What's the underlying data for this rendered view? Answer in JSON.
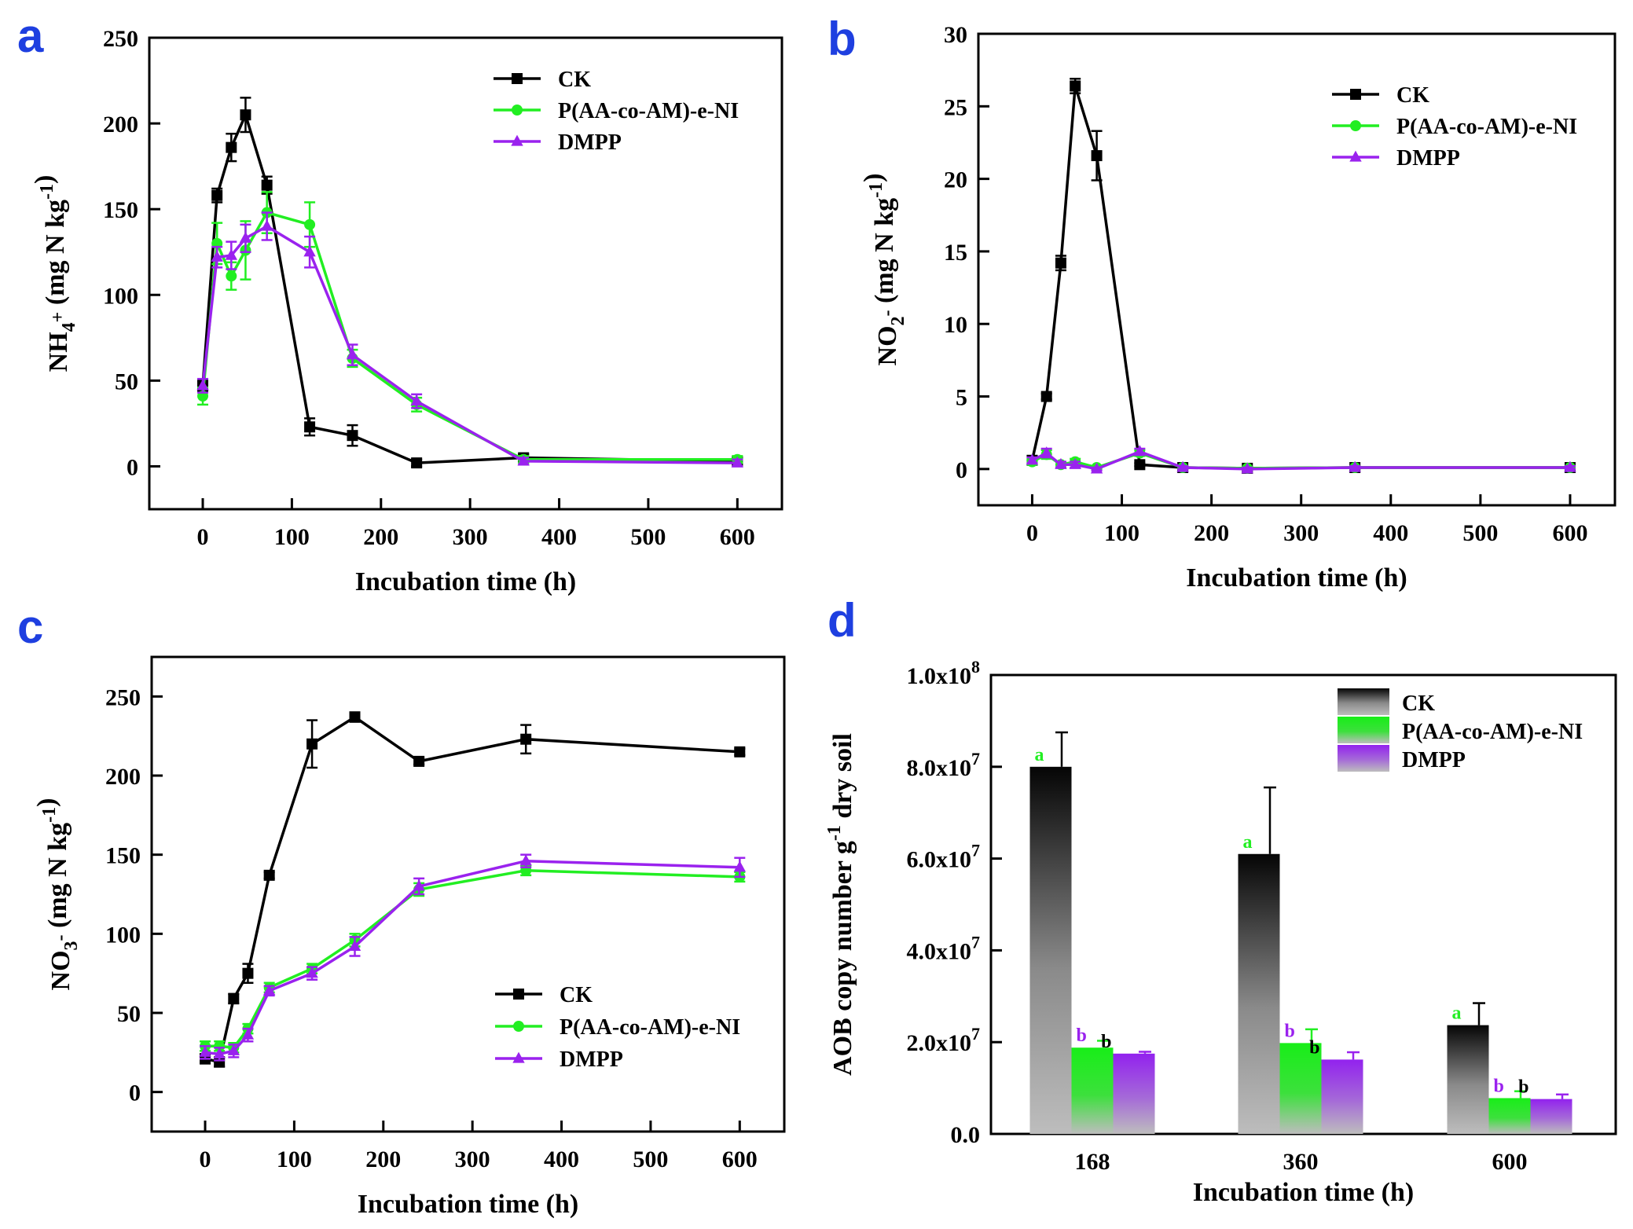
{
  "figure": {
    "panel_letters": [
      "a",
      "b",
      "c",
      "d"
    ],
    "colors": {
      "ck": "#000000",
      "ni": "#22ee22",
      "dmpp": "#9a22ee",
      "panel_letter": "#1e3fe0"
    }
  },
  "chart_data": [
    {
      "panel": "a",
      "type": "line",
      "title": "",
      "xlabel": "Incubation time (h)",
      "ylabel": "NH4+ (mg N kg-1)",
      "ylabel_parts": {
        "main": "NH",
        "sub": "4",
        "sup": "+",
        "rest": " (mg N kg",
        "sup2": "-1",
        "end": ")"
      },
      "xlim": [
        -60,
        650
      ],
      "ylim": [
        -25,
        250
      ],
      "xticks": [
        0,
        100,
        200,
        300,
        400,
        500,
        600
      ],
      "yticks": [
        0,
        50,
        100,
        150,
        200,
        250
      ],
      "legend_position": "top-right",
      "series": [
        {
          "name": "CK",
          "color": "#000000",
          "marker": "square",
          "x": [
            0,
            16,
            32,
            48,
            72,
            120,
            168,
            240,
            360,
            600
          ],
          "y": [
            47,
            158,
            186,
            205,
            164,
            23,
            18,
            2,
            5,
            3
          ],
          "err": [
            3,
            4,
            8,
            10,
            5,
            5,
            6,
            2,
            2,
            2
          ]
        },
        {
          "name": "P(AA-co-AM)-e-NI",
          "color": "#22ee22",
          "marker": "circle",
          "x": [
            0,
            16,
            32,
            48,
            72,
            120,
            168,
            240,
            360,
            600
          ],
          "y": [
            41,
            130,
            111,
            126,
            148,
            141,
            63,
            36,
            4,
            4
          ],
          "err": [
            5,
            12,
            8,
            17,
            12,
            13,
            5,
            4,
            2,
            2
          ]
        },
        {
          "name": "DMPP",
          "color": "#9a22ee",
          "marker": "triangle",
          "x": [
            0,
            16,
            32,
            48,
            72,
            120,
            168,
            240,
            360,
            600
          ],
          "y": [
            47,
            122,
            123,
            133,
            140,
            125,
            65,
            38,
            3,
            2
          ],
          "err": [
            4,
            6,
            8,
            8,
            8,
            9,
            6,
            4,
            2,
            2
          ]
        }
      ]
    },
    {
      "panel": "b",
      "type": "line",
      "title": "",
      "xlabel": "Incubation time (h)",
      "ylabel": "NO2- (mg N kg-1)",
      "ylabel_parts": {
        "main": "NO",
        "sub": "2",
        "sup": "-",
        "rest": " (mg N kg",
        "sup2": "-1",
        "end": ")"
      },
      "xlim": [
        -60,
        650
      ],
      "ylim": [
        -2.5,
        30
      ],
      "xticks": [
        0,
        100,
        200,
        300,
        400,
        500,
        600
      ],
      "yticks": [
        0,
        5,
        10,
        15,
        20,
        25,
        30
      ],
      "legend_position": "top-right",
      "series": [
        {
          "name": "CK",
          "color": "#000000",
          "marker": "square",
          "x": [
            0,
            16,
            32,
            48,
            72,
            120,
            168,
            240,
            360,
            600
          ],
          "y": [
            0.6,
            5.0,
            14.2,
            26.4,
            21.6,
            0.3,
            0.1,
            0.05,
            0.1,
            0.1
          ],
          "err": [
            0.3,
            0.2,
            0.5,
            0.5,
            1.7,
            0.1,
            0.1,
            0.1,
            0.1,
            0.1
          ]
        },
        {
          "name": "P(AA-co-AM)-e-NI",
          "color": "#22ee22",
          "marker": "circle",
          "x": [
            0,
            16,
            32,
            48,
            72,
            120,
            168,
            240,
            360,
            600
          ],
          "y": [
            0.5,
            1.0,
            0.3,
            0.5,
            0.1,
            1.1,
            0.1,
            0.05,
            0.1,
            0.1
          ],
          "err": [
            0.2,
            0.3,
            0.2,
            0.2,
            0.1,
            0.2,
            0.1,
            0.1,
            0.1,
            0.1
          ]
        },
        {
          "name": "DMPP",
          "color": "#9a22ee",
          "marker": "triangle",
          "x": [
            0,
            16,
            32,
            48,
            72,
            120,
            168,
            240,
            360,
            600
          ],
          "y": [
            0.6,
            1.1,
            0.3,
            0.3,
            0.0,
            1.2,
            0.1,
            0.0,
            0.1,
            0.1
          ],
          "err": [
            0.2,
            0.3,
            0.2,
            0.2,
            0.1,
            0.2,
            0.1,
            0.1,
            0.1,
            0.1
          ]
        }
      ]
    },
    {
      "panel": "c",
      "type": "line",
      "title": "",
      "xlabel": "Incubation time (h)",
      "ylabel": "NO3- (mg N kg-1)",
      "ylabel_parts": {
        "main": "NO",
        "sub": "3",
        "sup": "-",
        "rest": " (mg N kg",
        "sup2": "-1",
        "end": ")"
      },
      "xlim": [
        -60,
        650
      ],
      "ylim": [
        -25,
        275
      ],
      "xticks": [
        0,
        100,
        200,
        300,
        400,
        500,
        600
      ],
      "yticks": [
        0,
        50,
        100,
        150,
        200,
        250
      ],
      "legend_position": "bottom-right",
      "series": [
        {
          "name": "CK",
          "color": "#000000",
          "marker": "square",
          "x": [
            0,
            16,
            32,
            48,
            72,
            120,
            168,
            240,
            360,
            600
          ],
          "y": [
            21,
            19,
            59,
            75,
            137,
            220,
            237,
            209,
            223,
            215
          ],
          "err": [
            3,
            3,
            3,
            6,
            2,
            15,
            3,
            2,
            9,
            2
          ]
        },
        {
          "name": "P(AA-co-AM)-e-NI",
          "color": "#22ee22",
          "marker": "circle",
          "x": [
            0,
            16,
            32,
            48,
            72,
            120,
            168,
            240,
            360,
            600
          ],
          "y": [
            29,
            29,
            28,
            40,
            66,
            78,
            96,
            128,
            140,
            136
          ],
          "err": [
            3,
            3,
            3,
            3,
            3,
            3,
            4,
            4,
            3,
            3
          ]
        },
        {
          "name": "DMPP",
          "color": "#9a22ee",
          "marker": "triangle",
          "x": [
            0,
            16,
            32,
            48,
            72,
            120,
            168,
            240,
            360,
            600
          ],
          "y": [
            25,
            24,
            26,
            36,
            64,
            75,
            92,
            130,
            146,
            142
          ],
          "err": [
            4,
            4,
            4,
            4,
            3,
            4,
            6,
            5,
            4,
            6
          ]
        }
      ]
    },
    {
      "panel": "d",
      "type": "bar",
      "title": "",
      "xlabel": "Incubation time (h)",
      "ylabel": "AOB copy number g-1 dry soil",
      "ylabel_parts": {
        "pre": "AOB copy number g",
        "sup": "-1",
        "post": " dry soil"
      },
      "categories": [
        "168",
        "360",
        "600"
      ],
      "ylim": [
        0,
        100000000
      ],
      "yticks": [
        0,
        20000000,
        40000000,
        60000000,
        80000000,
        100000000
      ],
      "ytick_labels": [
        {
          "mant": "0.0",
          "exp": ""
        },
        {
          "mant": "2.0x10",
          "exp": "7"
        },
        {
          "mant": "4.0x10",
          "exp": "7"
        },
        {
          "mant": "6.0x10",
          "exp": "7"
        },
        {
          "mant": "8.0x10",
          "exp": "7"
        },
        {
          "mant": "1.0x10",
          "exp": "8"
        }
      ],
      "legend_position": "top-right",
      "series": [
        {
          "name": "CK",
          "color": "#000000",
          "values": [
            80000000,
            61000000,
            23700000
          ],
          "err": [
            7500000,
            14500000,
            4800000
          ],
          "letters": [
            "a",
            "a",
            "a"
          ],
          "letter_colors": [
            "#22ee22",
            "#22ee22",
            "#22ee22"
          ]
        },
        {
          "name": "P(AA-co-AM)-e-NI",
          "color": "#22ee22",
          "values": [
            18800000,
            19800000,
            7800000
          ],
          "err": [
            1500000,
            3000000,
            1500000
          ],
          "letters": [
            "b",
            "b",
            "b"
          ],
          "letter_colors": [
            "#9a22ee",
            "#9a22ee",
            "#9a22ee"
          ]
        },
        {
          "name": "DMPP",
          "color": "#9a22ee",
          "values": [
            17500000,
            16200000,
            7600000
          ],
          "err": [
            400000,
            1600000,
            1000000
          ],
          "letters": [
            "b",
            "b",
            "b"
          ],
          "letter_colors": [
            "#000000",
            "#000000",
            "#000000"
          ]
        }
      ]
    }
  ]
}
